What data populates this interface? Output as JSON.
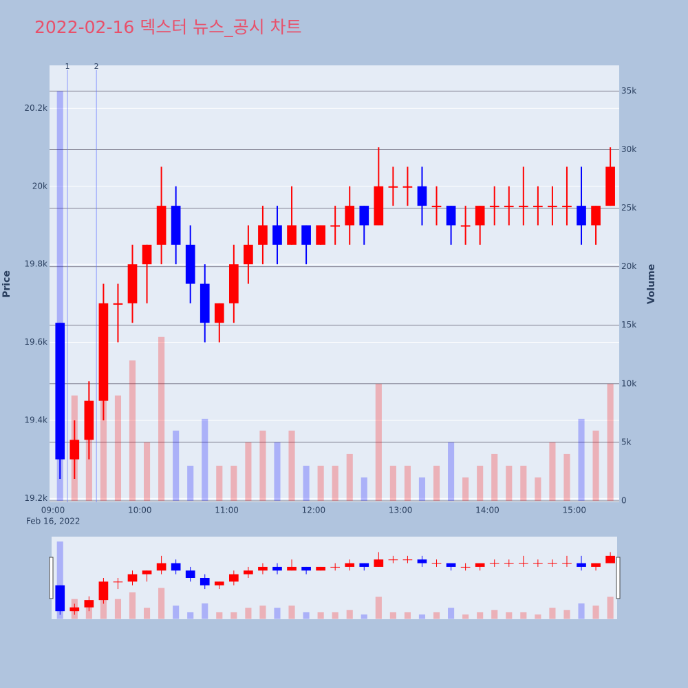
{
  "chart_data": {
    "type": "candlestick",
    "title": "2022-02-16 덱스터 뉴스_공시 차트",
    "y_label": "Price",
    "y2_label": "Volume",
    "x_date_label": "Feb 16, 2022",
    "x": [
      "09:00",
      "09:10",
      "09:20",
      "09:30",
      "09:40",
      "09:50",
      "10:00",
      "10:10",
      "10:20",
      "10:30",
      "10:40",
      "10:50",
      "11:00",
      "11:10",
      "11:20",
      "11:30",
      "11:40",
      "11:50",
      "12:00",
      "12:10",
      "12:20",
      "12:30",
      "12:40",
      "12:50",
      "13:00",
      "13:10",
      "13:20",
      "13:30",
      "13:40",
      "13:50",
      "14:00",
      "14:10",
      "14:20",
      "14:30",
      "14:40",
      "14:50",
      "15:00",
      "15:10",
      "15:20"
    ],
    "open": [
      19650,
      19300,
      19350,
      19450,
      19700,
      19700,
      19800,
      19850,
      19950,
      19850,
      19750,
      19650,
      19700,
      19800,
      19850,
      19900,
      19850,
      19900,
      19850,
      19900,
      19900,
      19950,
      19900,
      20000,
      20000,
      20000,
      19950,
      19950,
      19900,
      19900,
      19950,
      19950,
      19950,
      19950,
      19950,
      19950,
      19950,
      19900,
      19950
    ],
    "high": [
      19650,
      19400,
      19500,
      19750,
      19750,
      19850,
      19850,
      20050,
      20000,
      19900,
      19800,
      19700,
      19850,
      19900,
      19950,
      19950,
      20000,
      19900,
      19900,
      19950,
      20000,
      19950,
      20100,
      20050,
      20050,
      20050,
      20000,
      19950,
      19950,
      19950,
      20000,
      20000,
      20050,
      20000,
      20000,
      20050,
      20050,
      19950,
      20100
    ],
    "low": [
      19250,
      19250,
      19300,
      19400,
      19600,
      19650,
      19700,
      19800,
      19800,
      19700,
      19600,
      19600,
      19650,
      19750,
      19800,
      19800,
      19850,
      19800,
      19850,
      19850,
      19850,
      19850,
      19900,
      19950,
      19950,
      19900,
      19900,
      19850,
      19850,
      19850,
      19900,
      19900,
      19900,
      19900,
      19900,
      19900,
      19850,
      19850,
      19950
    ],
    "close": [
      19300,
      19350,
      19450,
      19700,
      19700,
      19800,
      19850,
      19950,
      19850,
      19750,
      19650,
      19700,
      19800,
      19850,
      19900,
      19850,
      19900,
      19850,
      19900,
      19900,
      19950,
      19900,
      20000,
      20000,
      20000,
      19950,
      19950,
      19900,
      19900,
      19950,
      19950,
      19950,
      19950,
      19950,
      19950,
      19950,
      19900,
      19950,
      20050
    ],
    "volume": [
      35000,
      9000,
      8000,
      15000,
      9000,
      12000,
      5000,
      14000,
      6000,
      3000,
      7000,
      3000,
      3000,
      5000,
      6000,
      5000,
      6000,
      3000,
      3000,
      3000,
      4000,
      2000,
      10000,
      3000,
      3000,
      2000,
      3000,
      5000,
      2000,
      3000,
      4000,
      3000,
      3000,
      2000,
      5000,
      4000,
      7000,
      6000,
      10000
    ],
    "increasing_color": "#ff0000",
    "decreasing_color": "#0000ff",
    "xlim": [
      "09:00",
      "15:31"
    ],
    "xticks": [
      "09:00",
      "10:00",
      "11:00",
      "12:00",
      "13:00",
      "14:00",
      "15:00"
    ],
    "ylim": [
      19190,
      20310
    ],
    "yticks": [
      {
        "value": 19200,
        "label": "19.2k"
      },
      {
        "value": 19400,
        "label": "19.4k"
      },
      {
        "value": 19600,
        "label": "19.6k"
      },
      {
        "value": 19800,
        "label": "19.8k"
      },
      {
        "value": 20000,
        "label": "20k"
      },
      {
        "value": 20200,
        "label": "20.2k"
      }
    ],
    "y2lim": [
      -120,
      37200
    ],
    "y2ticks": [
      0,
      {
        "value": 5000,
        "label": "5k"
      },
      {
        "value": 10000,
        "label": "10k"
      },
      {
        "value": 15000,
        "label": "15k"
      },
      {
        "value": 20000,
        "label": "20k"
      },
      {
        "value": 25000,
        "label": "25k"
      },
      {
        "value": 30000,
        "label": "30k"
      },
      {
        "value": 35000,
        "label": "35k"
      }
    ],
    "annotations": [
      {
        "x": "09:10",
        "text": "1"
      },
      {
        "x": "09:30",
        "text": "2"
      }
    ],
    "grid": true
  }
}
